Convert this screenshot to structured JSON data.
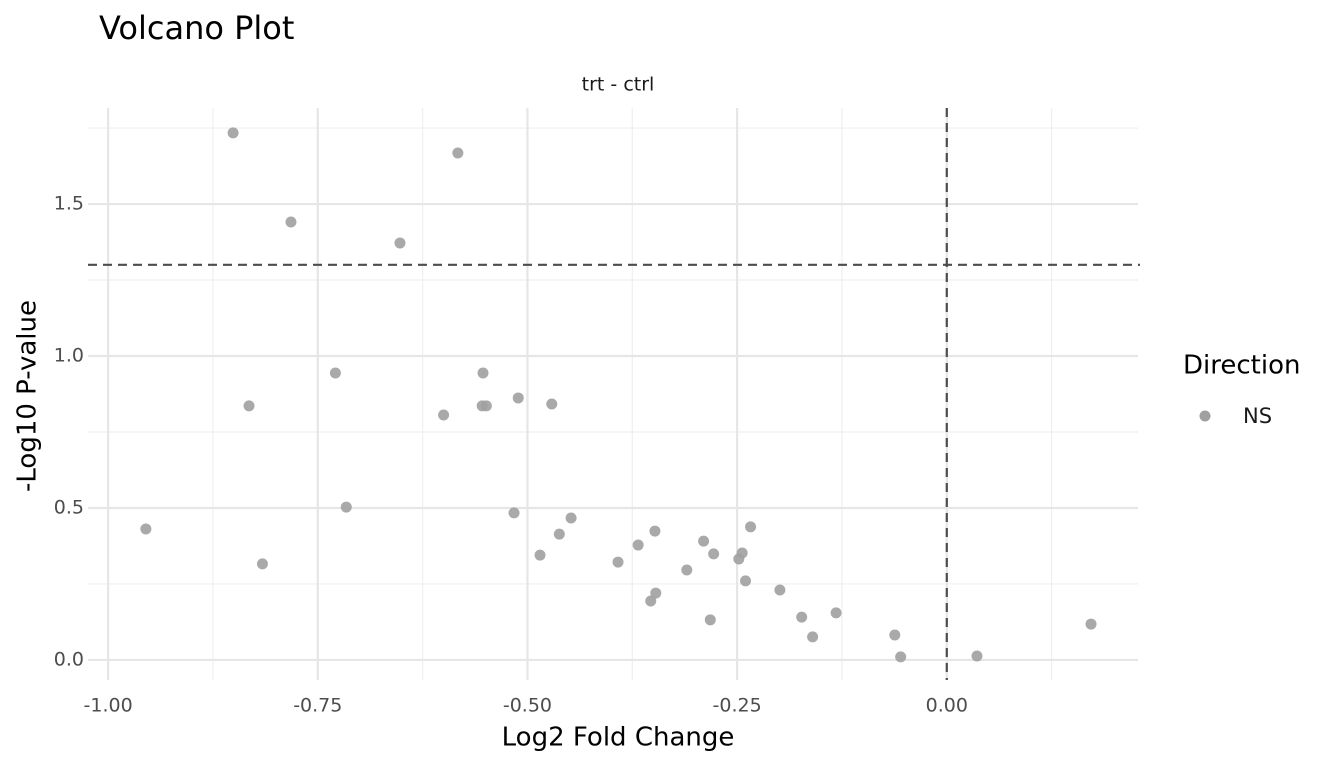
{
  "chart_data": {
    "type": "scatter",
    "title": "Volcano Plot",
    "facet": "trt - ctrl",
    "x_label": "Log2 Fold Change",
    "y_label": "-Log10 P-value",
    "legend_title": "Direction",
    "legend_position": "right",
    "grid": true,
    "x": [
      -0.851,
      -0.583,
      -0.782,
      -0.652,
      -0.729,
      -0.832,
      -0.6,
      -0.553,
      -0.554,
      -0.549,
      -0.511,
      -0.471,
      -0.955,
      -0.716,
      -0.816,
      -0.516,
      -0.485,
      -0.462,
      -0.448,
      -0.392,
      -0.368,
      -0.348,
      -0.353,
      -0.347,
      -0.31,
      -0.29,
      -0.278,
      -0.282,
      -0.248,
      -0.244,
      -0.234,
      -0.24,
      -0.199,
      -0.173,
      -0.16,
      -0.132,
      -0.062,
      -0.055,
      0.036,
      0.172
    ],
    "series": [
      {
        "name": "NS",
        "color": "#a0a0a0",
        "values": [
          1.734,
          1.668,
          1.441,
          1.372,
          0.944,
          0.836,
          0.806,
          0.944,
          0.836,
          0.836,
          0.862,
          0.842,
          0.431,
          0.503,
          0.316,
          0.484,
          0.345,
          0.414,
          0.467,
          0.322,
          0.378,
          0.424,
          0.194,
          0.22,
          0.296,
          0.391,
          0.349,
          0.132,
          0.332,
          0.352,
          0.438,
          0.26,
          0.23,
          0.141,
          0.076,
          0.155,
          0.082,
          0.01,
          0.013,
          0.118
        ]
      }
    ],
    "xlim": [
      -1.024,
      0.228
    ],
    "ylim": [
      -0.066,
      1.816
    ],
    "xticks": [
      {
        "value": -1,
        "label": "-1.00"
      },
      {
        "value": -0.75,
        "label": "-0.75"
      },
      {
        "value": -0.5,
        "label": "-0.50"
      },
      {
        "value": -0.25,
        "label": "-0.25"
      },
      {
        "value": 0,
        "label": "0.00"
      }
    ],
    "yticks": [
      {
        "value": 0,
        "label": "0.0"
      },
      0.5,
      {
        "value": 1,
        "label": "1.0"
      },
      1.5
    ],
    "hlines": [
      1.3
    ],
    "vlines": [
      0
    ]
  }
}
